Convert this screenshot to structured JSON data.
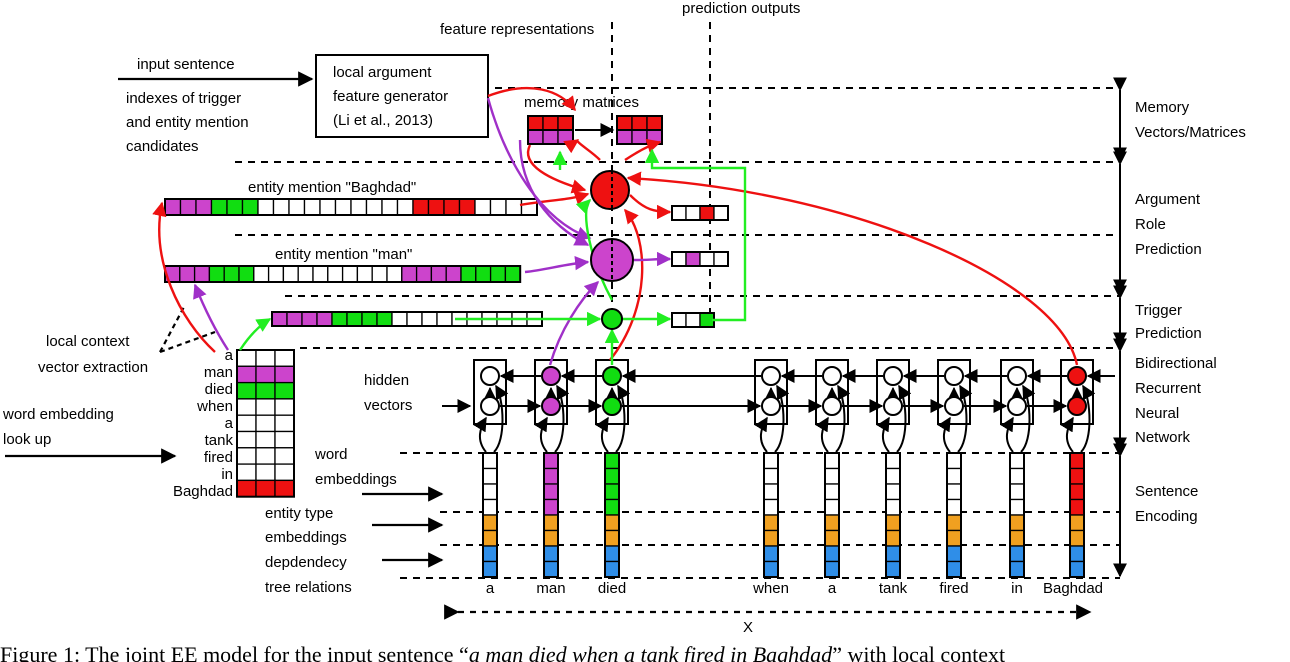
{
  "labels": {
    "input_sentence": "input sentence",
    "indexes": [
      "indexes of trigger",
      "and entity mention",
      "candidates"
    ],
    "generator": [
      "local argument",
      "feature generator",
      "(Li et al., 2013)"
    ],
    "feature_representations": "feature representations",
    "prediction_outputs": "prediction outputs",
    "memory_matrices": "memory matrices",
    "entity_baghdad": "entity mention \"Baghdad\"",
    "entity_man": "entity mention \"man\"",
    "local_context": [
      "local context",
      "vector extraction"
    ],
    "word_embedding_lookup": [
      "word embedding",
      "look up"
    ],
    "hidden_vectors": [
      "hidden",
      "vectors"
    ],
    "word_embeddings": [
      "word",
      "embeddings"
    ],
    "entity_type_embeddings": [
      "entity type",
      "embeddings"
    ],
    "dependency_tree_relations": [
      "depdendecy",
      "tree relations"
    ],
    "x_label": "X"
  },
  "sections": [
    [
      "Memory",
      "Vectors/Matrices"
    ],
    [
      "Argument",
      "Role",
      "Prediction"
    ],
    [
      "Trigger",
      "Prediction"
    ],
    [
      "Bidirectional",
      "Recurrent",
      "Neural",
      "Network"
    ],
    [
      "Sentence",
      "Encoding"
    ]
  ],
  "lookup_words": [
    "a",
    "man",
    "died",
    "when",
    "a",
    "tank",
    "fired",
    "in",
    "Baghdad"
  ],
  "sentence_tokens": [
    "a",
    "man",
    "died",
    "when",
    "a",
    "tank",
    "fired",
    "in",
    "Baghdad"
  ],
  "caption": {
    "prefix": "Figure 1: The joint EE model for the input sentence “",
    "sentence": "a man died when a tank fired in Baghdad",
    "suffix": "” with local context"
  },
  "colors": {
    "red": "#ee1111",
    "magenta": "#cc44cc",
    "green": "#11dd11",
    "orange": "#f0a020",
    "blue": "#2f8ee8",
    "purple": "#a030c8",
    "bright_green": "#22ee22"
  }
}
